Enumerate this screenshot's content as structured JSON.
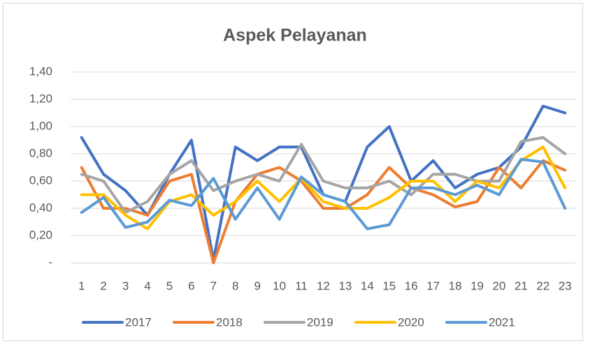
{
  "chart_data": {
    "type": "line",
    "title": "Aspek Pelayanan",
    "categories": [
      "1",
      "2",
      "3",
      "4",
      "5",
      "6",
      "7",
      "8",
      "9",
      "10",
      "11",
      "12",
      "13",
      "14",
      "15",
      "16",
      "17",
      "18",
      "19",
      "20",
      "21",
      "22",
      "23"
    ],
    "series": [
      {
        "name": "2017",
        "color": "#4472c4",
        "values": [
          0.92,
          0.65,
          0.53,
          0.35,
          0.65,
          0.9,
          0.02,
          0.85,
          0.75,
          0.85,
          0.85,
          0.5,
          0.45,
          0.85,
          1.0,
          0.6,
          0.75,
          0.55,
          0.65,
          0.7,
          0.85,
          1.15,
          1.1
        ]
      },
      {
        "name": "2018",
        "color": "#ed7d31",
        "values": [
          0.7,
          0.4,
          0.4,
          0.35,
          0.6,
          0.65,
          0.0,
          0.45,
          0.65,
          0.7,
          0.6,
          0.4,
          0.4,
          0.5,
          0.7,
          0.55,
          0.5,
          0.41,
          0.45,
          0.7,
          0.55,
          0.75,
          0.68
        ]
      },
      {
        "name": "2019",
        "color": "#a5a5a5",
        "values": [
          0.65,
          0.6,
          0.37,
          0.45,
          0.65,
          0.75,
          0.53,
          0.6,
          0.65,
          0.6,
          0.87,
          0.6,
          0.55,
          0.55,
          0.6,
          0.5,
          0.65,
          0.65,
          0.6,
          0.6,
          0.89,
          0.92,
          0.8
        ]
      },
      {
        "name": "2020",
        "color": "#ffc000",
        "values": [
          0.5,
          0.5,
          0.35,
          0.25,
          0.45,
          0.5,
          0.35,
          0.45,
          0.6,
          0.45,
          0.62,
          0.45,
          0.4,
          0.4,
          0.48,
          0.6,
          0.6,
          0.45,
          0.6,
          0.55,
          0.75,
          0.85,
          0.55
        ]
      },
      {
        "name": "2021",
        "color": "#5b9bd5",
        "values": [
          0.37,
          0.48,
          0.26,
          0.3,
          0.46,
          0.42,
          0.62,
          0.32,
          0.55,
          0.32,
          0.63,
          0.5,
          0.45,
          0.25,
          0.28,
          0.55,
          0.55,
          0.5,
          0.57,
          0.5,
          0.76,
          0.74,
          0.4
        ]
      }
    ],
    "ylim": [
      0,
      1.4
    ],
    "yticks": [
      {
        "value": 0,
        "label": "-"
      },
      {
        "value": 0.2,
        "label": "0,20"
      },
      {
        "value": 0.4,
        "label": "0,40"
      },
      {
        "value": 0.6,
        "label": "0,60"
      },
      {
        "value": 0.8,
        "label": "0,80"
      },
      {
        "value": 1.0,
        "label": "1,00"
      },
      {
        "value": 1.2,
        "label": "1,20"
      },
      {
        "value": 1.4,
        "label": "1,40"
      }
    ],
    "grid": true,
    "legend": "bottom"
  }
}
